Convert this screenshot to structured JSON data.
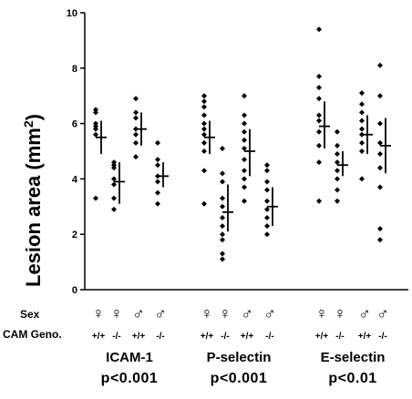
{
  "chart_data": {
    "type": "scatter",
    "title": "",
    "ylabel": "Lesion area (mm²)",
    "ylabel_parts": {
      "main": "Lesion area (mm",
      "sup": "2",
      "close": ")"
    },
    "ylim": [
      0,
      10
    ],
    "yticks": [
      0,
      2,
      4,
      6,
      8,
      10
    ],
    "grid": false,
    "row_labels": {
      "sex": "Sex",
      "genotype": "CAM Geno."
    },
    "group_labels": [
      "ICAM-1",
      "P-selectin",
      "E-selectin"
    ],
    "p_values": [
      "p<0.001",
      "p<0.001",
      "p<0.01"
    ],
    "sex_symbols": {
      "female": "♀",
      "male": "♂"
    },
    "series": [
      {
        "group": 0,
        "sex": "female",
        "genotype": "+/+",
        "points": [
          6.5,
          6.4,
          6.0,
          5.9,
          5.8,
          5.6,
          3.3
        ],
        "mean": 5.5,
        "err": [
          4.9,
          6.1
        ]
      },
      {
        "group": 0,
        "sex": "female",
        "genotype": "-/-",
        "points": [
          4.6,
          4.5,
          4.4,
          4.0,
          3.8,
          3.3,
          2.9
        ],
        "mean": 3.9,
        "err": [
          3.1,
          4.6
        ]
      },
      {
        "group": 0,
        "sex": "male",
        "genotype": "+/+",
        "points": [
          6.9,
          6.4,
          6.2,
          5.8,
          5.6,
          5.3,
          4.8
        ],
        "mean": 5.8,
        "err": [
          5.2,
          6.4
        ]
      },
      {
        "group": 0,
        "sex": "male",
        "genotype": "-/-",
        "points": [
          5.3,
          4.7,
          4.5,
          4.1,
          3.9,
          3.5,
          3.1
        ],
        "mean": 4.1,
        "err": [
          3.7,
          4.6
        ]
      },
      {
        "group": 1,
        "sex": "female",
        "genotype": "+/+",
        "points": [
          7.0,
          6.8,
          6.6,
          6.3,
          6.0,
          5.8,
          5.6,
          5.3,
          5.0,
          4.3,
          3.1
        ],
        "mean": 5.5,
        "err": [
          4.9,
          6.1
        ]
      },
      {
        "group": 1,
        "sex": "female",
        "genotype": "-/-",
        "points": [
          5.1,
          4.2,
          3.9,
          3.3,
          3.0,
          2.6,
          2.3,
          2.0,
          1.8,
          1.3,
          1.1
        ],
        "mean": 2.8,
        "err": [
          2.1,
          3.8
        ]
      },
      {
        "group": 1,
        "sex": "male",
        "genotype": "+/+",
        "points": [
          7.0,
          6.3,
          6.0,
          5.7,
          5.4,
          5.1,
          4.7,
          4.3,
          4.0,
          3.7,
          3.2
        ],
        "mean": 5.0,
        "err": [
          4.1,
          5.8
        ]
      },
      {
        "group": 1,
        "sex": "male",
        "genotype": "-/-",
        "points": [
          4.5,
          4.3,
          3.9,
          3.6,
          3.2,
          2.9,
          2.6,
          2.3,
          2.0
        ],
        "mean": 3.0,
        "err": [
          2.3,
          3.7
        ]
      },
      {
        "group": 2,
        "sex": "female",
        "genotype": "+/+",
        "points": [
          9.4,
          7.7,
          7.3,
          6.9,
          6.3,
          6.1,
          5.7,
          5.2,
          4.6,
          3.2
        ],
        "mean": 5.9,
        "err": [
          5.1,
          6.8
        ]
      },
      {
        "group": 2,
        "sex": "female",
        "genotype": "-/-",
        "points": [
          5.7,
          5.2,
          4.9,
          4.6,
          4.3,
          4.0,
          3.6,
          3.2
        ],
        "mean": 4.5,
        "err": [
          4.1,
          5.0
        ]
      },
      {
        "group": 2,
        "sex": "male",
        "genotype": "+/+",
        "points": [
          7.1,
          6.7,
          6.4,
          6.1,
          5.8,
          5.6,
          5.3,
          5.0,
          4.0
        ],
        "mean": 5.6,
        "err": [
          4.9,
          6.3
        ]
      },
      {
        "group": 2,
        "sex": "male",
        "genotype": "-/-",
        "points": [
          8.1,
          7.0,
          6.0,
          5.3,
          4.9,
          4.4,
          3.7,
          2.2,
          1.8
        ],
        "mean": 5.2,
        "err": [
          4.2,
          6.2
        ]
      }
    ]
  }
}
